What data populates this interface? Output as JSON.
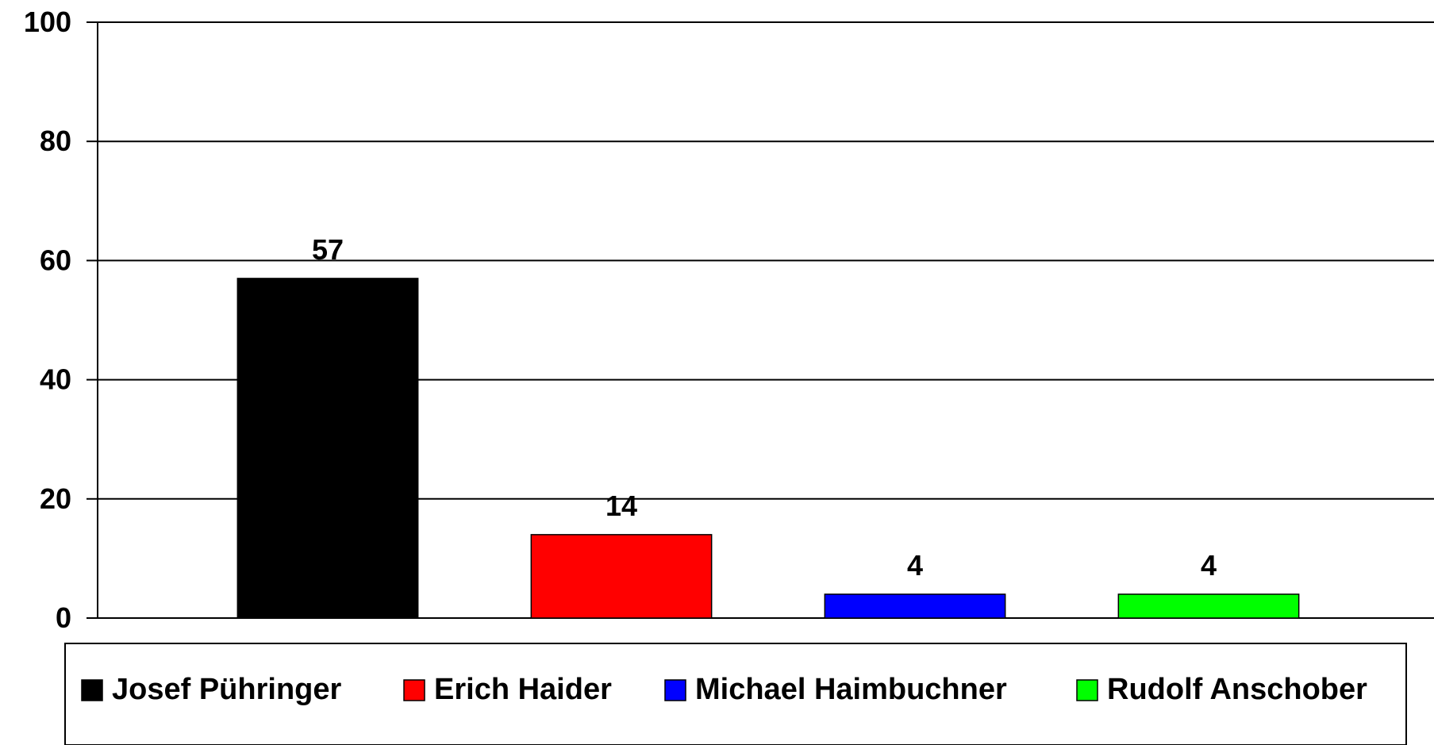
{
  "chart_data": {
    "type": "bar",
    "categories": [
      "Josef Pühringer",
      "Erich Haider",
      "Michael Haimbuchner",
      "Rudolf Anschober"
    ],
    "values": [
      57,
      14,
      4,
      4
    ],
    "colors": [
      "#000000",
      "#ff0000",
      "#0000ff",
      "#00ff00"
    ],
    "yticks": [
      "0",
      "20",
      "40",
      "60",
      "80",
      "100"
    ],
    "ylim": [
      0,
      100
    ],
    "grid": true,
    "legend_position": "bottom"
  }
}
